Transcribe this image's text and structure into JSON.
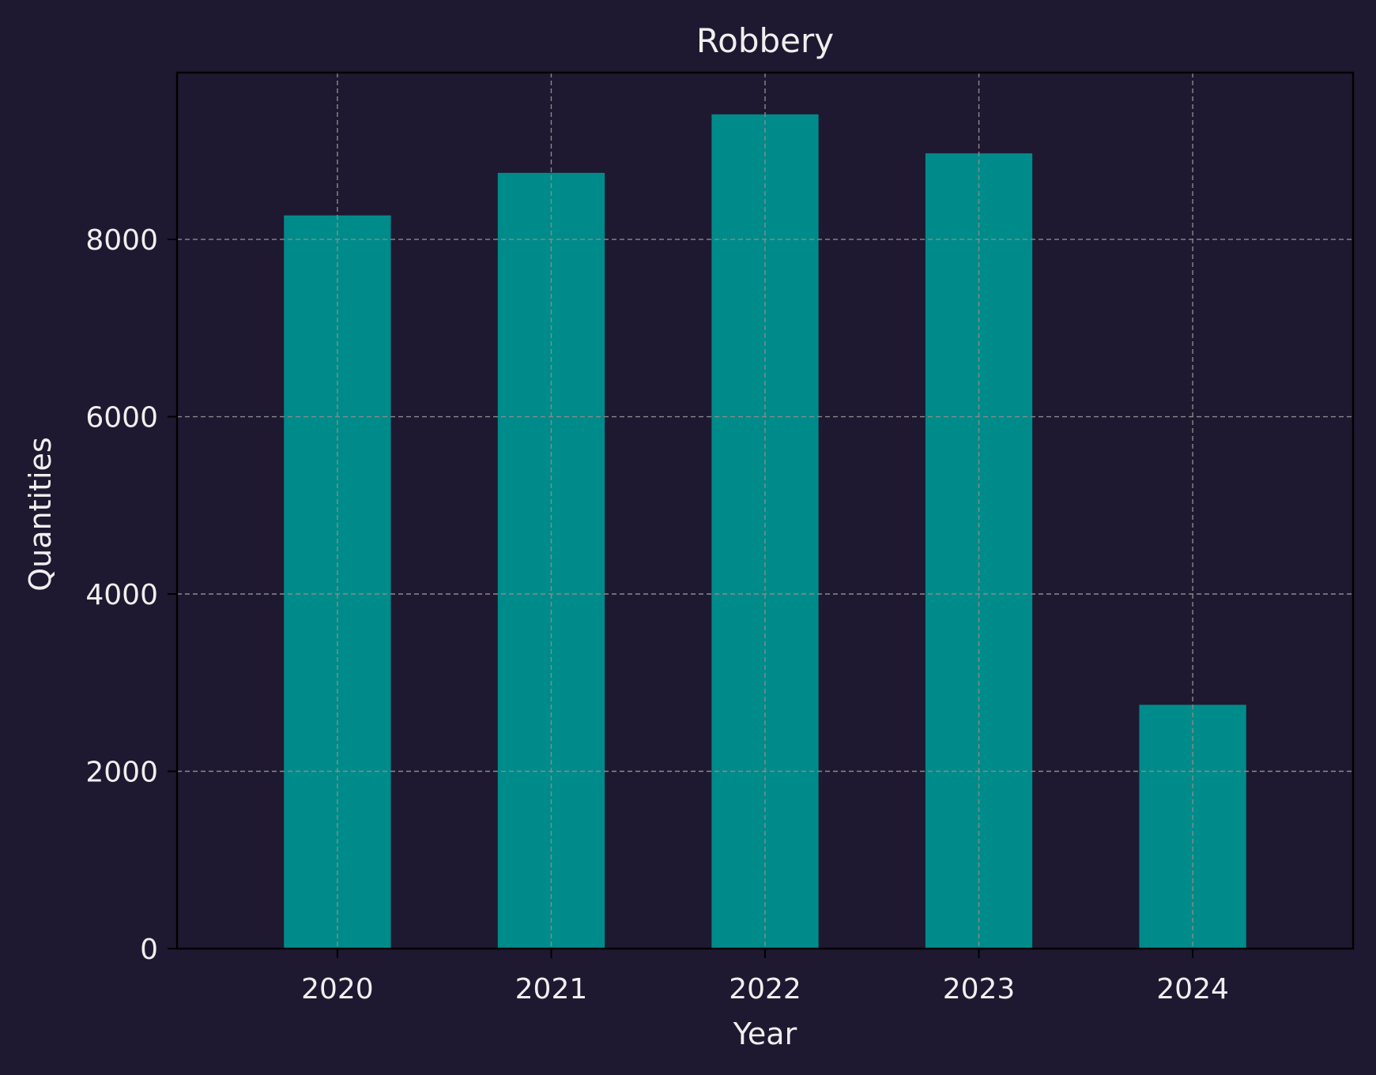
{
  "chart_data": {
    "type": "bar",
    "title": "Robbery",
    "xlabel": "Year",
    "ylabel": "Quantities",
    "categories": [
      "2020",
      "2021",
      "2022",
      "2023",
      "2024"
    ],
    "values": [
      8270,
      8750,
      9410,
      8970,
      2750
    ],
    "ylim": [
      0,
      9880
    ],
    "yticks": [
      0,
      2000,
      4000,
      6000,
      8000
    ],
    "grid": true,
    "colors": {
      "background": "#1e1930",
      "bar": "#008b8b",
      "text": "#f2eeee",
      "grid": "#8a8a8a",
      "axis": "#000000"
    }
  }
}
